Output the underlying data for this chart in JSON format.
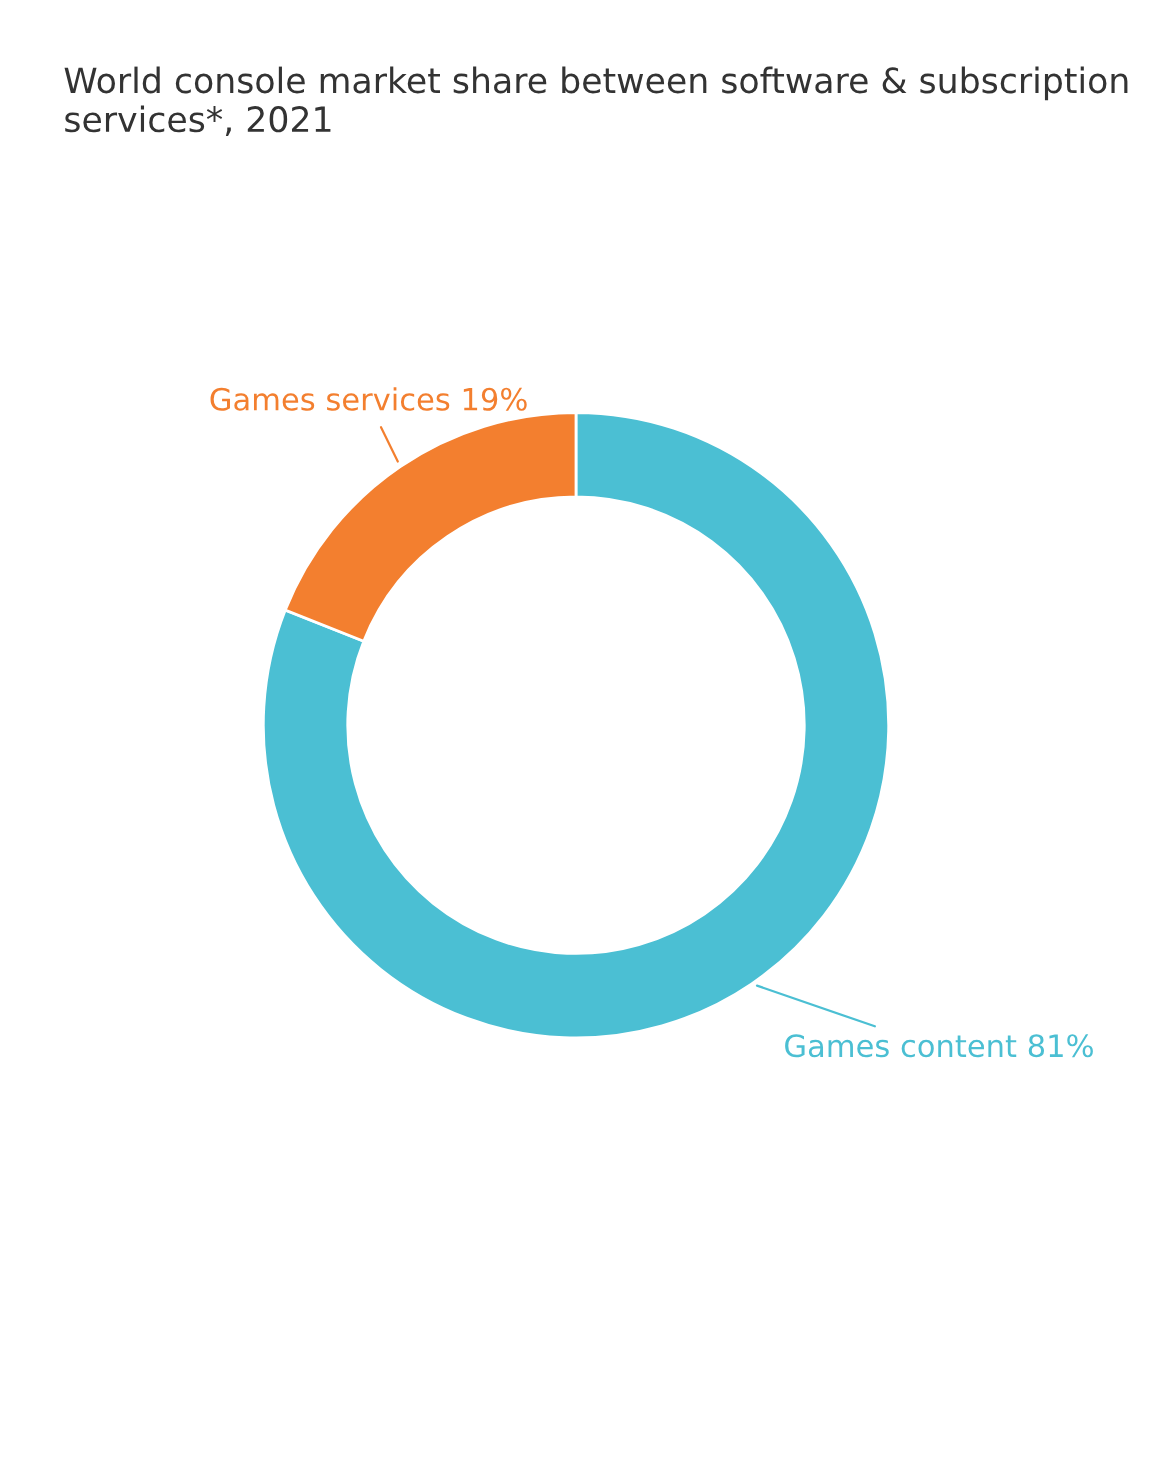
{
  "chart_data": {
    "type": "donut",
    "title": "World console market share between software & subscription services*, 2021",
    "categories": [
      "Games content",
      "Games services"
    ],
    "values": [
      81,
      19
    ],
    "colors": [
      "#4bbfd3",
      "#f37f2f"
    ],
    "value_labels": [
      "81%",
      "19%"
    ],
    "legend": false
  }
}
